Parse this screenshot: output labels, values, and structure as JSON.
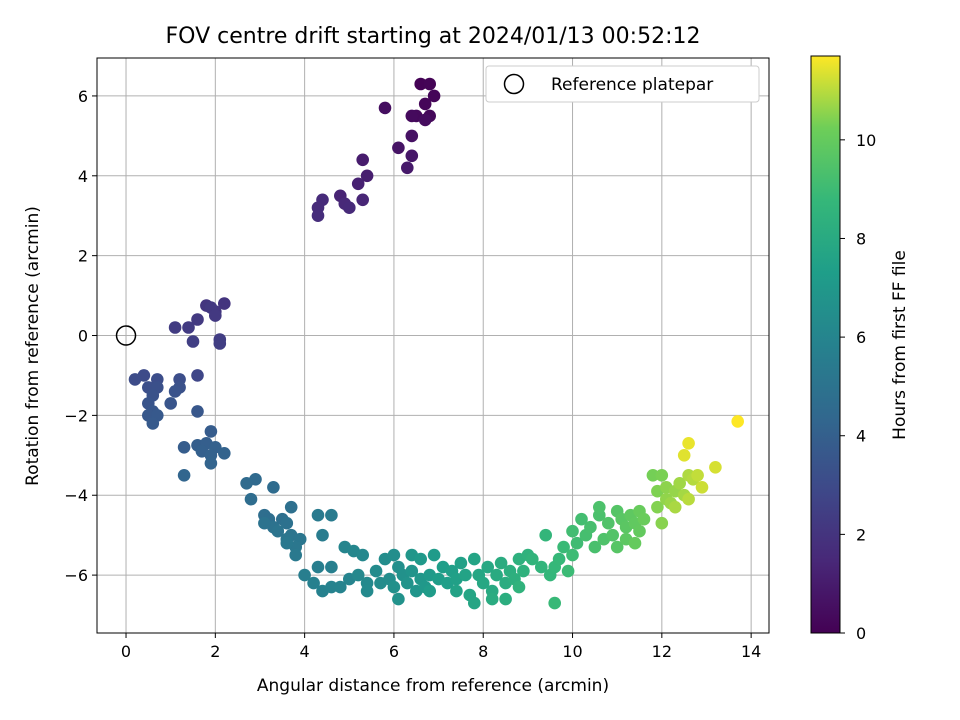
{
  "chart_data": {
    "type": "scatter",
    "title": "FOV centre drift starting at 2024/01/13 00:52:12",
    "xlabel": "Angular distance from reference (arcmin)",
    "ylabel": "Rotation from reference (arcmin)",
    "xlim": [
      -0.65,
      14.4
    ],
    "ylim": [
      -7.45,
      6.95
    ],
    "xticks": [
      0,
      2,
      4,
      6,
      8,
      10,
      12,
      14
    ],
    "yticks": [
      -6,
      -4,
      -2,
      0,
      2,
      4,
      6
    ],
    "grid": true,
    "legend": {
      "position": "top-right",
      "entries": [
        "Reference platepar"
      ]
    },
    "reference": {
      "x": 0,
      "y": 0
    },
    "colorbar": {
      "label": "Hours from first FF file",
      "colormap": "viridis",
      "range": [
        0,
        11.7
      ],
      "ticks": [
        0,
        2,
        4,
        6,
        8,
        10
      ]
    },
    "points": [
      [
        6.6,
        6.3,
        0.05
      ],
      [
        6.8,
        6.3,
        0.1
      ],
      [
        6.9,
        6.0,
        0.15
      ],
      [
        6.7,
        5.8,
        0.2
      ],
      [
        6.8,
        5.5,
        0.25
      ],
      [
        6.5,
        5.5,
        0.3
      ],
      [
        6.4,
        5.5,
        0.35
      ],
      [
        6.7,
        5.4,
        0.4
      ],
      [
        5.8,
        5.7,
        0.5
      ],
      [
        6.4,
        5.0,
        0.6
      ],
      [
        6.1,
        4.7,
        0.7
      ],
      [
        6.4,
        4.5,
        0.8
      ],
      [
        6.3,
        4.2,
        0.9
      ],
      [
        5.3,
        4.4,
        1.0
      ],
      [
        5.4,
        4.0,
        1.1
      ],
      [
        5.2,
        3.8,
        1.2
      ],
      [
        4.8,
        3.5,
        1.3
      ],
      [
        5.3,
        3.4,
        1.4
      ],
      [
        4.9,
        3.3,
        1.5
      ],
      [
        5.0,
        3.2,
        1.55
      ],
      [
        4.4,
        3.4,
        1.6
      ],
      [
        4.3,
        3.2,
        1.65
      ],
      [
        4.3,
        3.0,
        1.7
      ],
      [
        2.2,
        0.8,
        2.0
      ],
      [
        1.8,
        0.75,
        2.05
      ],
      [
        2.0,
        0.6,
        2.1
      ],
      [
        1.9,
        0.7,
        2.15
      ],
      [
        2.0,
        0.5,
        2.2
      ],
      [
        1.6,
        0.4,
        2.25
      ],
      [
        1.4,
        0.2,
        2.3
      ],
      [
        1.1,
        0.2,
        2.35
      ],
      [
        2.1,
        -0.1,
        2.4
      ],
      [
        2.1,
        -0.2,
        2.45
      ],
      [
        1.5,
        -0.15,
        2.5
      ],
      [
        1.6,
        -1.0,
        2.8
      ],
      [
        0.4,
        -1.0,
        3.0
      ],
      [
        0.2,
        -1.1,
        3.05
      ],
      [
        0.7,
        -1.1,
        3.1
      ],
      [
        1.2,
        -1.1,
        3.15
      ],
      [
        0.5,
        -1.3,
        3.2
      ],
      [
        0.7,
        -1.3,
        3.25
      ],
      [
        1.2,
        -1.3,
        3.3
      ],
      [
        0.6,
        -1.5,
        3.35
      ],
      [
        1.1,
        -1.4,
        3.4
      ],
      [
        0.5,
        -1.7,
        3.45
      ],
      [
        1.0,
        -1.7,
        3.5
      ],
      [
        0.6,
        -1.9,
        3.55
      ],
      [
        1.6,
        -1.9,
        3.6
      ],
      [
        0.5,
        -2.0,
        3.65
      ],
      [
        0.7,
        -2.0,
        3.7
      ],
      [
        0.6,
        -2.2,
        3.75
      ],
      [
        1.9,
        -2.4,
        3.8
      ],
      [
        1.3,
        -2.8,
        3.85
      ],
      [
        1.6,
        -2.75,
        3.9
      ],
      [
        1.8,
        -2.7,
        3.95
      ],
      [
        1.7,
        -2.9,
        4.0
      ],
      [
        2.0,
        -2.8,
        4.05
      ],
      [
        1.9,
        -3.0,
        4.1
      ],
      [
        2.2,
        -2.95,
        4.15
      ],
      [
        1.9,
        -3.2,
        4.2
      ],
      [
        1.3,
        -3.5,
        4.3
      ],
      [
        2.9,
        -3.6,
        4.5
      ],
      [
        2.7,
        -3.7,
        4.55
      ],
      [
        3.3,
        -3.8,
        4.6
      ],
      [
        2.8,
        -4.1,
        4.65
      ],
      [
        3.1,
        -4.5,
        4.7
      ],
      [
        3.2,
        -4.6,
        4.75
      ],
      [
        3.5,
        -4.6,
        4.8
      ],
      [
        3.7,
        -4.3,
        4.85
      ],
      [
        3.6,
        -4.7,
        4.9
      ],
      [
        3.3,
        -4.8,
        4.95
      ],
      [
        3.1,
        -4.7,
        5.0
      ],
      [
        3.4,
        -4.9,
        5.05
      ],
      [
        3.7,
        -5.0,
        5.1
      ],
      [
        3.6,
        -5.1,
        5.15
      ],
      [
        3.9,
        -5.1,
        5.2
      ],
      [
        3.8,
        -5.3,
        5.25
      ],
      [
        3.6,
        -5.2,
        5.3
      ],
      [
        3.8,
        -5.5,
        5.35
      ],
      [
        4.3,
        -4.5,
        5.4
      ],
      [
        4.6,
        -4.5,
        5.45
      ],
      [
        4.4,
        -5.0,
        5.5
      ],
      [
        4.0,
        -6.0,
        5.6
      ],
      [
        4.3,
        -5.8,
        5.65
      ],
      [
        4.6,
        -5.8,
        5.7
      ],
      [
        4.2,
        -6.2,
        5.75
      ],
      [
        4.4,
        -6.4,
        5.8
      ],
      [
        4.6,
        -6.3,
        5.85
      ],
      [
        4.8,
        -6.3,
        5.9
      ],
      [
        5.0,
        -6.1,
        5.95
      ],
      [
        4.9,
        -5.3,
        6.0
      ],
      [
        5.1,
        -5.4,
        6.05
      ],
      [
        5.3,
        -5.5,
        6.1
      ],
      [
        5.2,
        -6.0,
        6.15
      ],
      [
        5.4,
        -6.2,
        6.2
      ],
      [
        5.4,
        -6.4,
        6.25
      ],
      [
        5.6,
        -5.9,
        6.3
      ],
      [
        5.7,
        -6.2,
        6.35
      ],
      [
        5.9,
        -6.1,
        6.4
      ],
      [
        5.8,
        -5.6,
        6.45
      ],
      [
        6.0,
        -5.5,
        6.5
      ],
      [
        6.1,
        -5.8,
        6.55
      ],
      [
        6.0,
        -6.3,
        6.6
      ],
      [
        6.2,
        -6.0,
        6.65
      ],
      [
        6.1,
        -6.6,
        6.7
      ],
      [
        6.3,
        -6.2,
        6.75
      ],
      [
        6.4,
        -5.9,
        6.8
      ],
      [
        6.5,
        -6.4,
        6.85
      ],
      [
        6.4,
        -5.5,
        6.9
      ],
      [
        6.6,
        -6.1,
        6.95
      ],
      [
        6.7,
        -6.3,
        7.0
      ],
      [
        6.6,
        -5.6,
        7.05
      ],
      [
        6.8,
        -6.0,
        7.1
      ],
      [
        6.9,
        -5.5,
        7.15
      ],
      [
        6.8,
        -6.4,
        7.2
      ],
      [
        7.0,
        -6.1,
        7.25
      ],
      [
        7.1,
        -5.8,
        7.3
      ],
      [
        7.2,
        -6.2,
        7.35
      ],
      [
        7.3,
        -5.9,
        7.4
      ],
      [
        7.4,
        -6.1,
        7.45
      ],
      [
        7.5,
        -5.7,
        7.5
      ],
      [
        7.4,
        -6.4,
        7.55
      ],
      [
        7.6,
        -6.0,
        7.6
      ],
      [
        7.8,
        -5.6,
        7.65
      ],
      [
        7.7,
        -6.5,
        7.7
      ],
      [
        7.8,
        -6.7,
        7.75
      ],
      [
        7.9,
        -6.0,
        7.8
      ],
      [
        8.0,
        -6.2,
        7.85
      ],
      [
        8.1,
        -5.8,
        7.9
      ],
      [
        8.2,
        -6.4,
        7.95
      ],
      [
        8.3,
        -6.0,
        8.0
      ],
      [
        8.2,
        -6.6,
        8.05
      ],
      [
        8.4,
        -5.7,
        8.1
      ],
      [
        8.5,
        -6.2,
        8.15
      ],
      [
        8.5,
        -6.6,
        8.2
      ],
      [
        8.6,
        -5.9,
        8.25
      ],
      [
        8.7,
        -6.1,
        8.3
      ],
      [
        8.8,
        -5.6,
        8.35
      ],
      [
        8.9,
        -5.9,
        8.4
      ],
      [
        9.0,
        -5.5,
        8.45
      ],
      [
        8.8,
        -6.3,
        8.5
      ],
      [
        9.1,
        -5.6,
        8.55
      ],
      [
        9.3,
        -5.8,
        8.6
      ],
      [
        9.4,
        -5.0,
        8.65
      ],
      [
        9.5,
        -6.0,
        8.7
      ],
      [
        9.6,
        -5.8,
        8.75
      ],
      [
        9.7,
        -5.6,
        8.8
      ],
      [
        9.6,
        -6.7,
        8.85
      ],
      [
        9.8,
        -5.3,
        8.9
      ],
      [
        9.9,
        -5.9,
        8.95
      ],
      [
        10.0,
        -5.5,
        9.0
      ],
      [
        10.1,
        -5.2,
        9.05
      ],
      [
        10.0,
        -4.9,
        9.1
      ],
      [
        10.2,
        -4.6,
        9.15
      ],
      [
        10.3,
        -5.0,
        9.2
      ],
      [
        10.4,
        -4.8,
        9.25
      ],
      [
        10.5,
        -5.3,
        9.3
      ],
      [
        10.6,
        -4.5,
        9.35
      ],
      [
        10.6,
        -4.3,
        9.4
      ],
      [
        10.7,
        -5.1,
        9.45
      ],
      [
        10.8,
        -4.7,
        9.5
      ],
      [
        10.9,
        -5.0,
        9.55
      ],
      [
        11.0,
        -4.4,
        9.6
      ],
      [
        11.0,
        -5.3,
        9.65
      ],
      [
        11.1,
        -4.6,
        9.7
      ],
      [
        11.2,
        -4.8,
        9.75
      ],
      [
        11.2,
        -5.1,
        9.8
      ],
      [
        11.3,
        -4.5,
        9.85
      ],
      [
        11.4,
        -4.7,
        9.9
      ],
      [
        11.5,
        -4.9,
        9.95
      ],
      [
        11.4,
        -5.2,
        10.0
      ],
      [
        11.5,
        -4.4,
        10.05
      ],
      [
        11.6,
        -4.6,
        10.1
      ],
      [
        11.8,
        -3.5,
        10.3
      ],
      [
        12.0,
        -3.5,
        10.35
      ],
      [
        11.9,
        -3.9,
        10.4
      ],
      [
        11.9,
        -4.3,
        10.45
      ],
      [
        12.0,
        -4.7,
        10.5
      ],
      [
        12.1,
        -3.8,
        10.55
      ],
      [
        12.1,
        -4.1,
        10.6
      ],
      [
        12.3,
        -3.9,
        10.65
      ],
      [
        12.2,
        -4.2,
        10.7
      ],
      [
        12.4,
        -3.7,
        10.75
      ],
      [
        12.5,
        -4.0,
        10.8
      ],
      [
        12.3,
        -4.3,
        10.85
      ],
      [
        12.6,
        -3.5,
        10.9
      ],
      [
        12.7,
        -3.6,
        10.95
      ],
      [
        12.6,
        -4.1,
        11.0
      ],
      [
        12.8,
        -3.5,
        11.1
      ],
      [
        12.9,
        -3.8,
        11.2
      ],
      [
        13.2,
        -3.3,
        11.3
      ],
      [
        12.5,
        -3.0,
        11.4
      ],
      [
        12.6,
        -2.7,
        11.5
      ],
      [
        13.7,
        -2.15,
        11.7
      ]
    ]
  }
}
